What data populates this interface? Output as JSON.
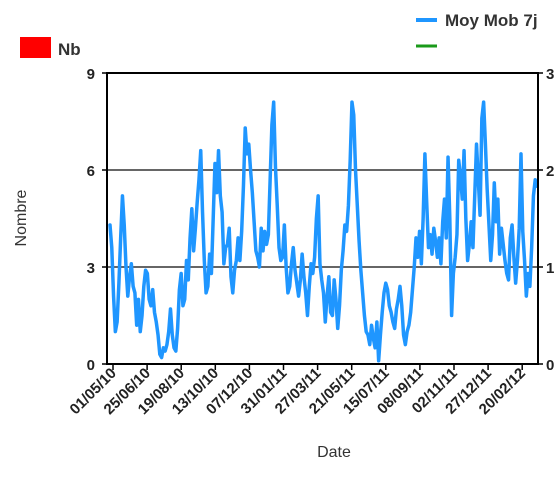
{
  "chart_data": {
    "type": "line",
    "xlabel": "Date",
    "ylabel": "Nombre",
    "ylim": [
      0,
      9
    ],
    "y_ticks": [
      "0",
      "3",
      "6",
      "9"
    ],
    "y2lim": [
      0,
      3
    ],
    "y2_ticks": [
      "0",
      "1",
      "2",
      "3"
    ],
    "x_ticks": [
      "01/05/10",
      "25/06/10",
      "19/08/10",
      "13/10/10",
      "07/12/10",
      "31/01/11",
      "27/03/11",
      "21/05/11",
      "15/07/11",
      "08/09/11",
      "02/11/11",
      "27/12/11",
      "20/02/12"
    ],
    "grid": true,
    "legend_position": "top",
    "legend": [
      {
        "label": "Nb",
        "color": "#ff0000",
        "marker": "box"
      },
      {
        "label": "Moy Mob 7j",
        "color": "#1f96ff",
        "marker": "line"
      },
      {
        "label": "",
        "color": "#1a9a1a",
        "marker": "line"
      }
    ],
    "series": [
      {
        "name": "Moy Mob 7j",
        "color": "#1f96ff",
        "axis": "left",
        "values": [
          4.3,
          3.6,
          2.1,
          1.0,
          1.3,
          2.5,
          3.9,
          5.2,
          4.3,
          3.0,
          2.1,
          2.7,
          3.1,
          2.4,
          2.2,
          1.2,
          2.0,
          1.0,
          1.5,
          2.4,
          2.9,
          2.8,
          2.0,
          1.8,
          2.3,
          1.6,
          1.3,
          0.9,
          0.3,
          0.2,
          0.5,
          0.4,
          0.6,
          1.0,
          1.7,
          0.9,
          0.5,
          0.4,
          1.1,
          2.3,
          2.8,
          1.8,
          2.0,
          3.2,
          2.6,
          3.9,
          4.8,
          3.5,
          4.2,
          5.0,
          5.7,
          6.6,
          4.7,
          3.2,
          2.2,
          2.4,
          3.4,
          2.8,
          4.5,
          6.2,
          5.3,
          6.6,
          5.2,
          4.7,
          3.1,
          3.6,
          3.7,
          4.2,
          2.7,
          2.2,
          2.9,
          3.2,
          3.9,
          3.2,
          4.1,
          5.5,
          7.3,
          6.5,
          6.8,
          6.0,
          5.3,
          4.4,
          3.5,
          3.3,
          3.0,
          4.2,
          3.5,
          4.1,
          3.7,
          4.0,
          5.7,
          7.4,
          8.1,
          6.1,
          4.9,
          3.6,
          3.2,
          3.3,
          4.3,
          3.0,
          2.2,
          2.4,
          3.1,
          3.6,
          2.9,
          2.5,
          2.1,
          2.6,
          3.4,
          2.7,
          2.2,
          1.5,
          2.4,
          3.1,
          2.8,
          3.3,
          4.5,
          5.2,
          3.1,
          2.6,
          2.2,
          1.3,
          2.1,
          2.7,
          1.6,
          1.5,
          2.6,
          2.0,
          1.1,
          1.8,
          2.9,
          3.5,
          4.3,
          4.1,
          4.9,
          6.3,
          8.1,
          7.7,
          6.0,
          4.9,
          3.8,
          2.9,
          2.2,
          1.5,
          1.0,
          0.9,
          0.6,
          1.2,
          0.8,
          0.5,
          1.3,
          0.1,
          0.9,
          1.6,
          2.2,
          2.5,
          2.3,
          1.8,
          1.6,
          1.3,
          1.1,
          1.7,
          2.0,
          2.4,
          1.8,
          0.9,
          0.6,
          1.0,
          1.2,
          1.6,
          2.3,
          3.0,
          3.9,
          3.3,
          4.1,
          3.1,
          4.5,
          6.5,
          5.0,
          3.6,
          4.0,
          3.4,
          4.2,
          3.8,
          3.3,
          3.9,
          3.1,
          4.4,
          5.1,
          3.9,
          6.4,
          4.5,
          1.5,
          2.8,
          3.3,
          4.0,
          6.3,
          5.8,
          5.1,
          6.6,
          4.5,
          3.2,
          3.7,
          4.4,
          3.6,
          5.2,
          6.8,
          5.7,
          4.6,
          7.6,
          8.1,
          6.8,
          5.4,
          4.3,
          3.2,
          4.0,
          5.6,
          4.4,
          5.1,
          3.4,
          4.2,
          3.7,
          3.2,
          2.8,
          2.6,
          3.9,
          4.3,
          3.3,
          2.5,
          3.2,
          4.2,
          6.5,
          4.1,
          3.2,
          2.1,
          2.8,
          2.4,
          3.6,
          5.2,
          5.7,
          5.5
        ]
      }
    ]
  }
}
